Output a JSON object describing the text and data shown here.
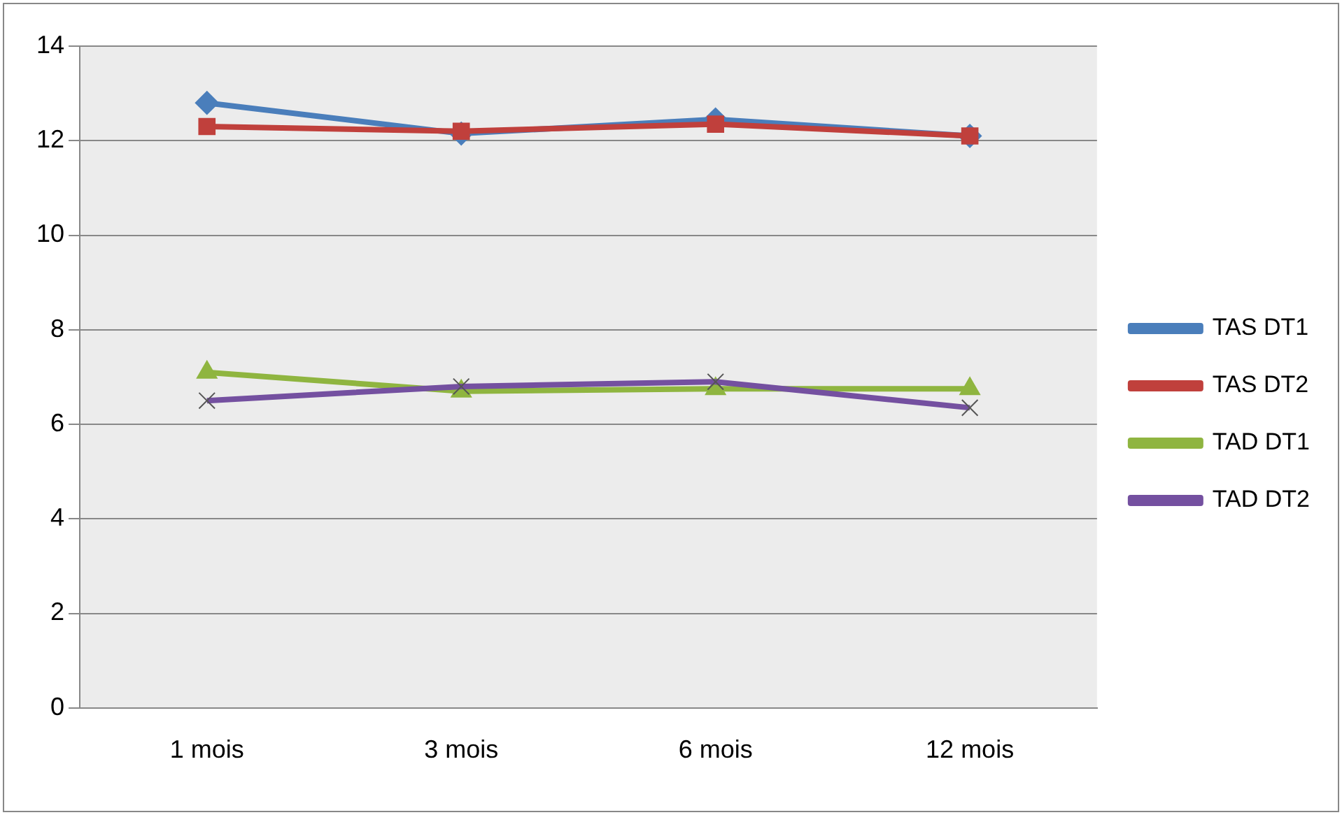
{
  "chart_data": {
    "type": "line",
    "categories": [
      "1 mois",
      "3 mois",
      "6 mois",
      "12 mois"
    ],
    "series": [
      {
        "name": "TAS DT1",
        "color": "#4a7ebb",
        "marker": "diamond",
        "values": [
          12.8,
          12.15,
          12.45,
          12.1
        ]
      },
      {
        "name": "TAS DT2",
        "color": "#c0403c",
        "marker": "square",
        "values": [
          12.3,
          12.2,
          12.35,
          12.1
        ]
      },
      {
        "name": "TAD DT1",
        "color": "#8fb540",
        "marker": "triangle",
        "values": [
          7.1,
          6.7,
          6.75,
          6.75
        ]
      },
      {
        "name": "TAD DT2",
        "color": "#7450a0",
        "marker": "cross",
        "values": [
          6.5,
          6.8,
          6.9,
          6.35
        ]
      }
    ],
    "ylim": [
      0,
      14
    ],
    "yticks": [
      0,
      2,
      4,
      6,
      8,
      10,
      12,
      14
    ],
    "grid": "y",
    "legend": "right"
  }
}
